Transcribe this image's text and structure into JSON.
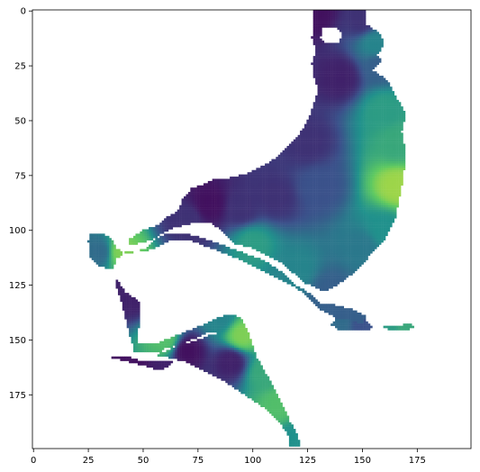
{
  "chart_data": {
    "type": "heatmap",
    "title": "",
    "xlabel": "",
    "ylabel": "",
    "xlim": [
      -0.5,
      199.5
    ],
    "ylim": [
      199.5,
      -0.5
    ],
    "x_ticks": [
      0,
      25,
      50,
      75,
      100,
      125,
      150,
      175
    ],
    "y_ticks": [
      0,
      25,
      50,
      75,
      100,
      125,
      150,
      175
    ],
    "grid": false,
    "colormap": "viridis",
    "colormap_stops": [
      "#440154",
      "#3b528b",
      "#21918c",
      "#5ec962",
      "#fde725"
    ],
    "masked_color": "#ffffff",
    "value_range": [
      0,
      1
    ],
    "grid_size": [
      200,
      200
    ],
    "regions": [
      {
        "name": "northern-basin",
        "boundary": [
          [
            128,
            0
          ],
          [
            152,
            0
          ],
          [
            152,
            6
          ],
          [
            158,
            10
          ],
          [
            160,
            15
          ],
          [
            157,
            20
          ],
          [
            159,
            23
          ],
          [
            155,
            27
          ],
          [
            162,
            32
          ],
          [
            166,
            40
          ],
          [
            170,
            47
          ],
          [
            168,
            55
          ],
          [
            170,
            66
          ],
          [
            168,
            80
          ],
          [
            165,
            95
          ],
          [
            160,
            105
          ],
          [
            153,
            112
          ],
          [
            148,
            118
          ],
          [
            140,
            124
          ],
          [
            133,
            128
          ],
          [
            124,
            124
          ],
          [
            112,
            114
          ],
          [
            100,
            108
          ],
          [
            92,
            106
          ],
          [
            87,
            101
          ],
          [
            80,
            96
          ],
          [
            72,
            97
          ],
          [
            64,
            99
          ],
          [
            58,
            102
          ],
          [
            52,
            108
          ],
          [
            42,
            111
          ],
          [
            38,
            108
          ],
          [
            35,
            103
          ],
          [
            31,
            101
          ],
          [
            26,
            102
          ],
          [
            25,
            105
          ],
          [
            26,
            112
          ],
          [
            30,
            116
          ],
          [
            36,
            118
          ],
          [
            38,
            113
          ],
          [
            43,
            109
          ],
          [
            50,
            110
          ],
          [
            56,
            108
          ],
          [
            62,
            105
          ],
          [
            70,
            104
          ],
          [
            78,
            107
          ],
          [
            86,
            110
          ],
          [
            96,
            114
          ],
          [
            106,
            119
          ],
          [
            116,
            124
          ],
          [
            124,
            129
          ],
          [
            131,
            136
          ],
          [
            138,
            140
          ],
          [
            146,
            141
          ],
          [
            150,
            143
          ],
          [
            152,
            139
          ],
          [
            146,
            136
          ],
          [
            138,
            134
          ],
          [
            131,
            133
          ],
          [
            125,
            128
          ],
          [
            120,
            125
          ],
          [
            117,
            122
          ],
          [
            112,
            118
          ],
          [
            106,
            114
          ],
          [
            98,
            111
          ],
          [
            90,
            108
          ],
          [
            82,
            105
          ],
          [
            76,
            103
          ],
          [
            68,
            101
          ],
          [
            60,
            102
          ],
          [
            55,
            104
          ],
          [
            48,
            106
          ],
          [
            44,
            107
          ],
          [
            44,
            104
          ],
          [
            50,
            100
          ],
          [
            56,
            98
          ],
          [
            61,
            94
          ],
          [
            66,
            91
          ],
          [
            68,
            86
          ],
          [
            72,
            81
          ],
          [
            78,
            79
          ],
          [
            82,
            77
          ],
          [
            90,
            76
          ],
          [
            98,
            74
          ],
          [
            106,
            70
          ],
          [
            113,
            65
          ],
          [
            120,
            58
          ],
          [
            125,
            50
          ],
          [
            128,
            42
          ],
          [
            130,
            36
          ],
          [
            128,
            30
          ],
          [
            127,
            24
          ],
          [
            129,
            18
          ],
          [
            127,
            12
          ],
          [
            128,
            6
          ]
        ],
        "values": [
          [
            128,
            0,
            0.05
          ],
          [
            150,
            4,
            0.15
          ],
          [
            156,
            15,
            0.45
          ],
          [
            158,
            25,
            0.3
          ],
          [
            140,
            30,
            0.1
          ],
          [
            160,
            45,
            0.55
          ],
          [
            166,
            60,
            0.6
          ],
          [
            166,
            80,
            0.85
          ],
          [
            160,
            100,
            0.5
          ],
          [
            150,
            108,
            0.4
          ],
          [
            130,
            80,
            0.25
          ],
          [
            125,
            60,
            0.15
          ],
          [
            110,
            85,
            0.15
          ],
          [
            95,
            90,
            0.15
          ],
          [
            80,
            88,
            0.05
          ],
          [
            70,
            95,
            0.15
          ],
          [
            100,
            106,
            0.55
          ],
          [
            120,
            118,
            0.45
          ],
          [
            135,
            128,
            0.3
          ],
          [
            145,
            138,
            0.3
          ],
          [
            40,
            110,
            0.8
          ],
          [
            30,
            110,
            0.35
          ]
        ]
      },
      {
        "name": "southern-isthmus",
        "boundary": [
          [
            38,
            122
          ],
          [
            42,
            128
          ],
          [
            48,
            132
          ],
          [
            49,
            138
          ],
          [
            48,
            145
          ],
          [
            47,
            152
          ],
          [
            55,
            152
          ],
          [
            65,
            148
          ],
          [
            75,
            144
          ],
          [
            84,
            140
          ],
          [
            90,
            138
          ],
          [
            95,
            140
          ],
          [
            98,
            146
          ],
          [
            100,
            152
          ],
          [
            102,
            158
          ],
          [
            106,
            165
          ],
          [
            110,
            172
          ],
          [
            114,
            180
          ],
          [
            117,
            187
          ],
          [
            120,
            192
          ],
          [
            122,
            199
          ],
          [
            117,
            199
          ],
          [
            116,
            193
          ],
          [
            111,
            186
          ],
          [
            104,
            180
          ],
          [
            98,
            176
          ],
          [
            92,
            172
          ],
          [
            86,
            168
          ],
          [
            78,
            164
          ],
          [
            70,
            160
          ],
          [
            62,
            158
          ],
          [
            58,
            158
          ],
          [
            55,
            158
          ],
          [
            60,
            154
          ],
          [
            68,
            152
          ],
          [
            75,
            150
          ],
          [
            80,
            148
          ],
          [
            84,
            147
          ],
          [
            79,
            147
          ],
          [
            72,
            150
          ],
          [
            65,
            153
          ],
          [
            58,
            156
          ],
          [
            50,
            156
          ],
          [
            46,
            155
          ],
          [
            44,
            148
          ],
          [
            42,
            140
          ],
          [
            40,
            132
          ],
          [
            38,
            126
          ]
        ],
        "values": [
          [
            45,
            130,
            0.1
          ],
          [
            60,
            150,
            0.7
          ],
          [
            85,
            140,
            0.45
          ],
          [
            95,
            148,
            0.8
          ],
          [
            105,
            165,
            0.6
          ],
          [
            112,
            180,
            0.7
          ],
          [
            118,
            195,
            0.5
          ],
          [
            90,
            160,
            0.1
          ],
          [
            70,
            155,
            0.05
          ]
        ]
      },
      {
        "name": "gulf-arm",
        "boundary": [
          [
            36,
            158
          ],
          [
            44,
            160
          ],
          [
            52,
            162
          ],
          [
            58,
            164
          ],
          [
            62,
            162
          ],
          [
            64,
            160
          ],
          [
            55,
            160
          ],
          [
            48,
            159
          ],
          [
            42,
            157
          ]
        ],
        "values": [
          [
            45,
            160,
            0.05
          ],
          [
            60,
            162,
            0.1
          ]
        ]
      },
      {
        "name": "island-chain",
        "boundary": [
          [
            138,
            140
          ],
          [
            146,
            140
          ],
          [
            152,
            141
          ],
          [
            155,
            144
          ],
          [
            153,
            146
          ],
          [
            146,
            145
          ],
          [
            140,
            146
          ],
          [
            136,
            143
          ]
        ],
        "values": [
          [
            140,
            142,
            0.35
          ],
          [
            150,
            143,
            0.25
          ]
        ]
      },
      {
        "name": "island-east",
        "boundary": [
          [
            160,
            144
          ],
          [
            166,
            144
          ],
          [
            172,
            142
          ],
          [
            174,
            144
          ],
          [
            170,
            146
          ],
          [
            163,
            146
          ]
        ],
        "values": [
          [
            162,
            145,
            0.55
          ],
          [
            170,
            144,
            0.6
          ]
        ]
      }
    ],
    "voids": [
      {
        "name": "lake",
        "boundary": [
          [
            132,
            8
          ],
          [
            138,
            7
          ],
          [
            141,
            11
          ],
          [
            139,
            15
          ],
          [
            134,
            15
          ],
          [
            131,
            12
          ]
        ]
      }
    ]
  }
}
